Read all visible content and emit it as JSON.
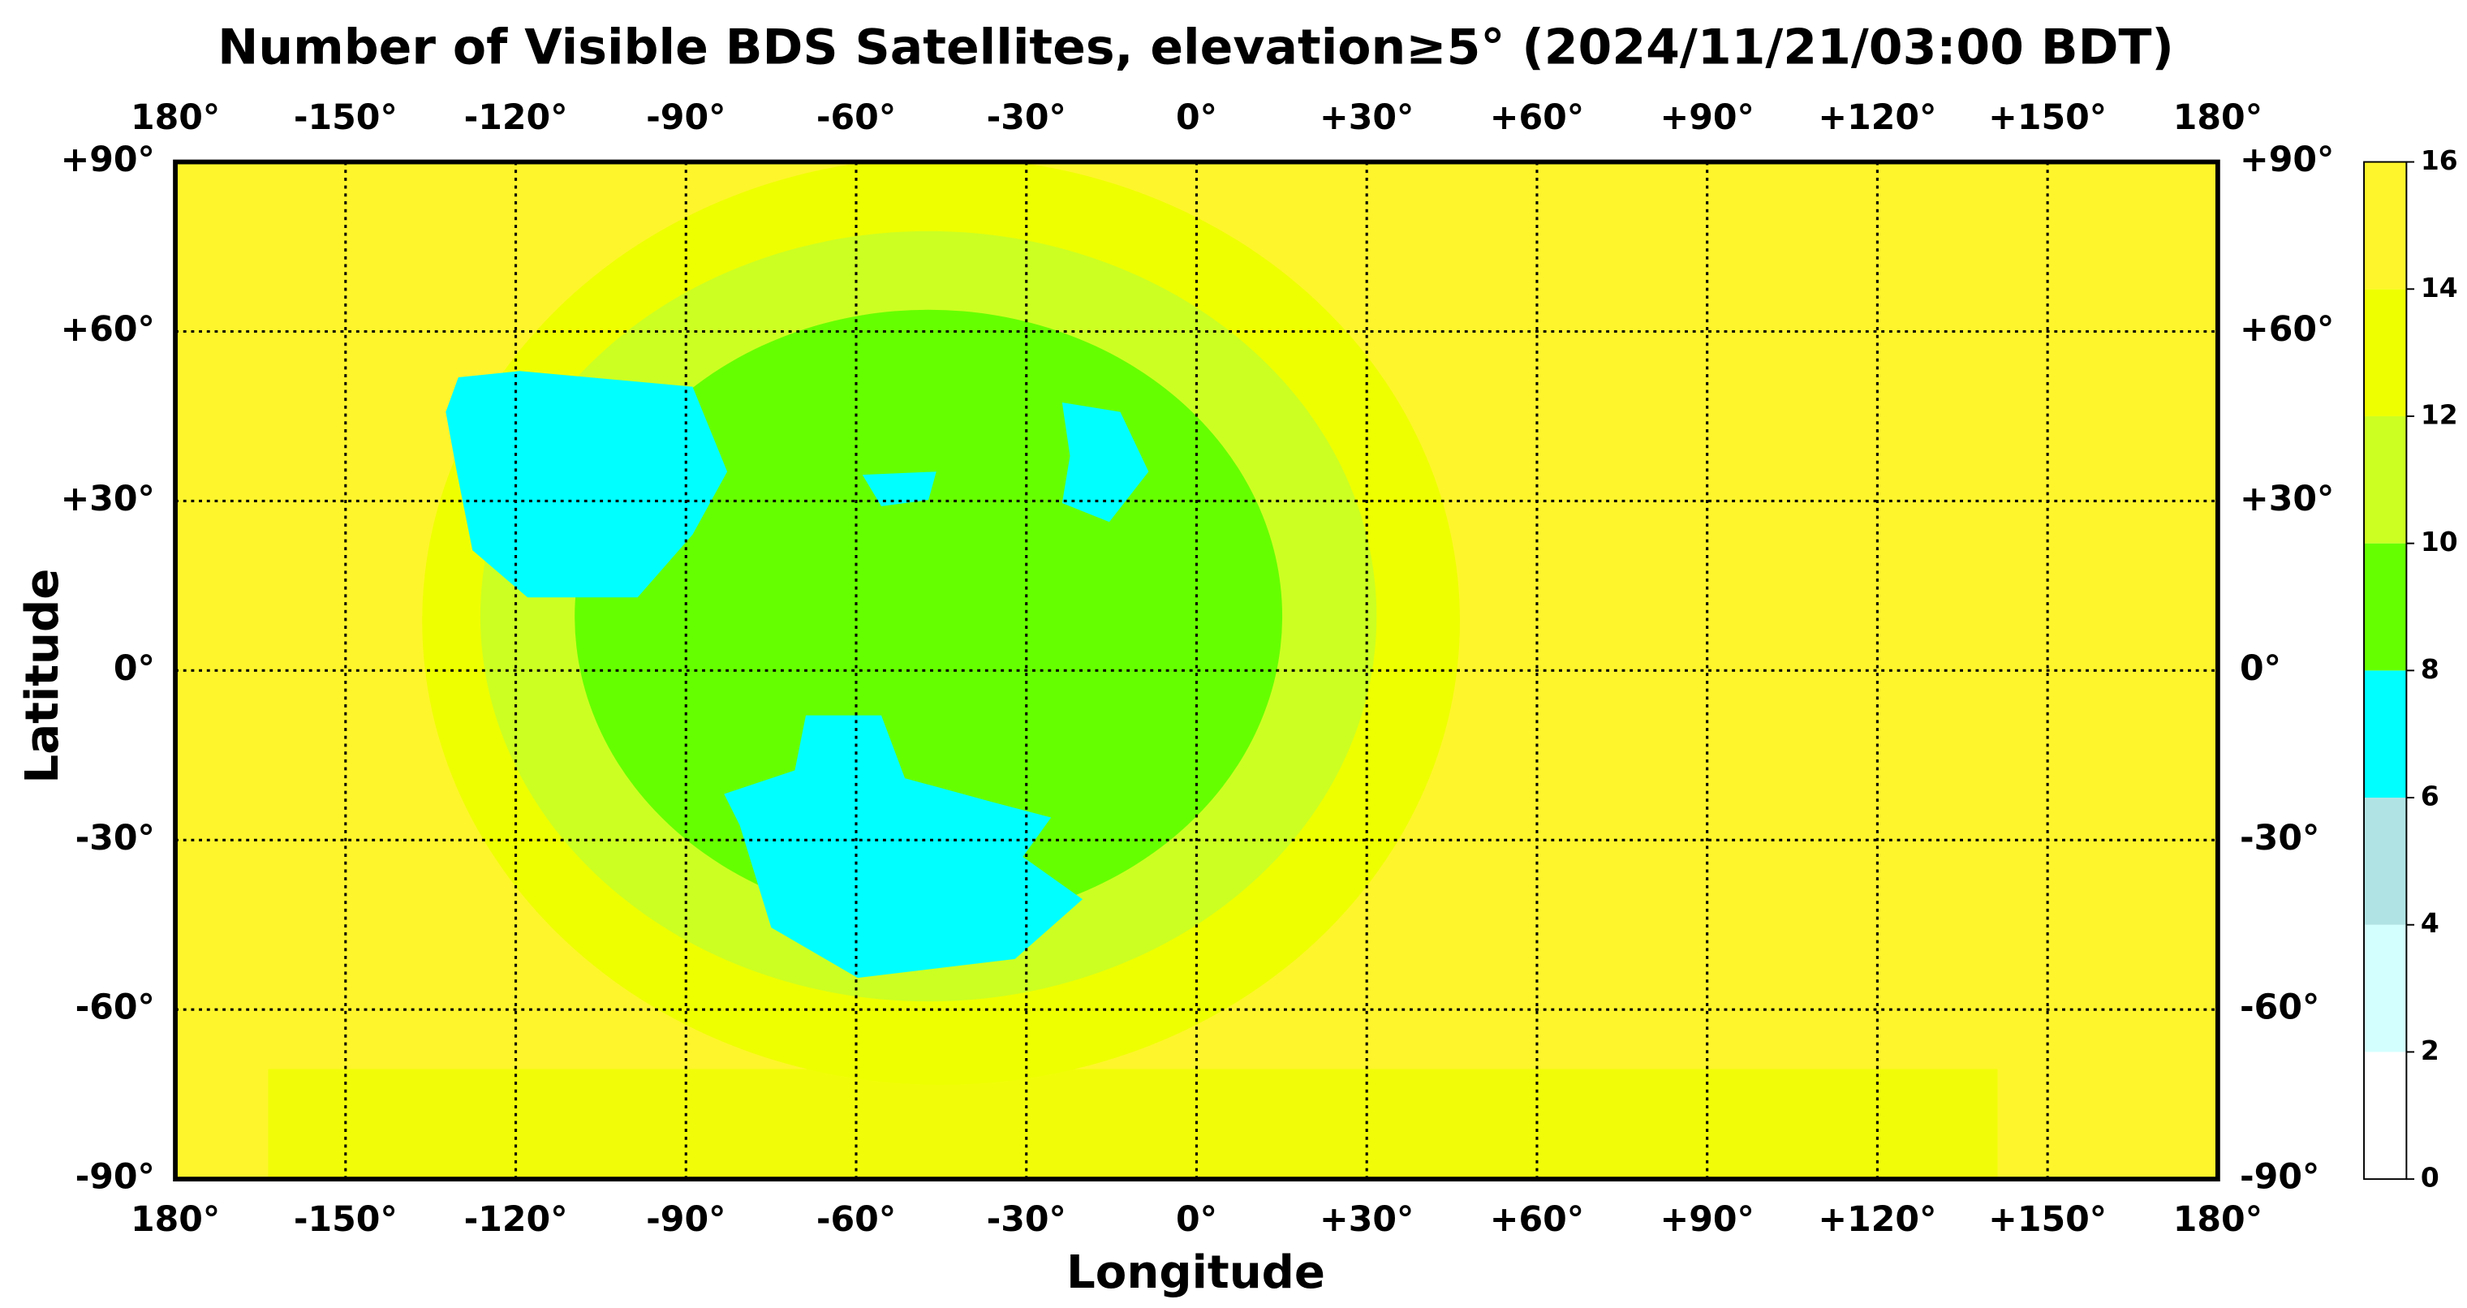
{
  "chart_data": {
    "type": "map",
    "title": "Number of Visible BDS Satellites, elevation≥5° (2024/11/21/03:00 BDT)",
    "x_label": "Longitude",
    "y_label": "Latitude",
    "xlim": [
      -180,
      180
    ],
    "ylim": [
      -90,
      90
    ],
    "xticks": [
      {
        "value": -180,
        "label": "180°"
      },
      {
        "value": -150,
        "label": "-150°"
      },
      {
        "value": -120,
        "label": "-120°"
      },
      {
        "value": -90,
        "label": "-90°"
      },
      {
        "value": -60,
        "label": "-60°"
      },
      {
        "value": -30,
        "label": "-30°"
      },
      {
        "value": 0,
        "label": "0°"
      },
      {
        "value": 30,
        "label": "+30°"
      },
      {
        "value": 60,
        "label": "+60°"
      },
      {
        "value": 90,
        "label": "+90°"
      },
      {
        "value": 120,
        "label": "+120°"
      },
      {
        "value": 150,
        "label": "+150°"
      },
      {
        "value": 180,
        "label": "180°"
      }
    ],
    "yticks": [
      {
        "value": 90,
        "label": "+90°"
      },
      {
        "value": 60,
        "label": "+60°"
      },
      {
        "value": 30,
        "label": "+30°"
      },
      {
        "value": 0,
        "label": "0°"
      },
      {
        "value": -30,
        "label": "-30°"
      },
      {
        "value": -60,
        "label": "-60°"
      },
      {
        "value": -90,
        "label": "-90°"
      }
    ],
    "grid": true,
    "colorbar": {
      "lim": [
        0,
        16
      ],
      "ticks": [
        0,
        2,
        4,
        6,
        8,
        10,
        12,
        14,
        16
      ],
      "colors": [
        "#ffffff",
        "#d4ffff",
        "#b0e4e4",
        "#00ffff",
        "#66ff00",
        "#ccff22",
        "#eeff00",
        "#fff52c"
      ]
    }
  }
}
